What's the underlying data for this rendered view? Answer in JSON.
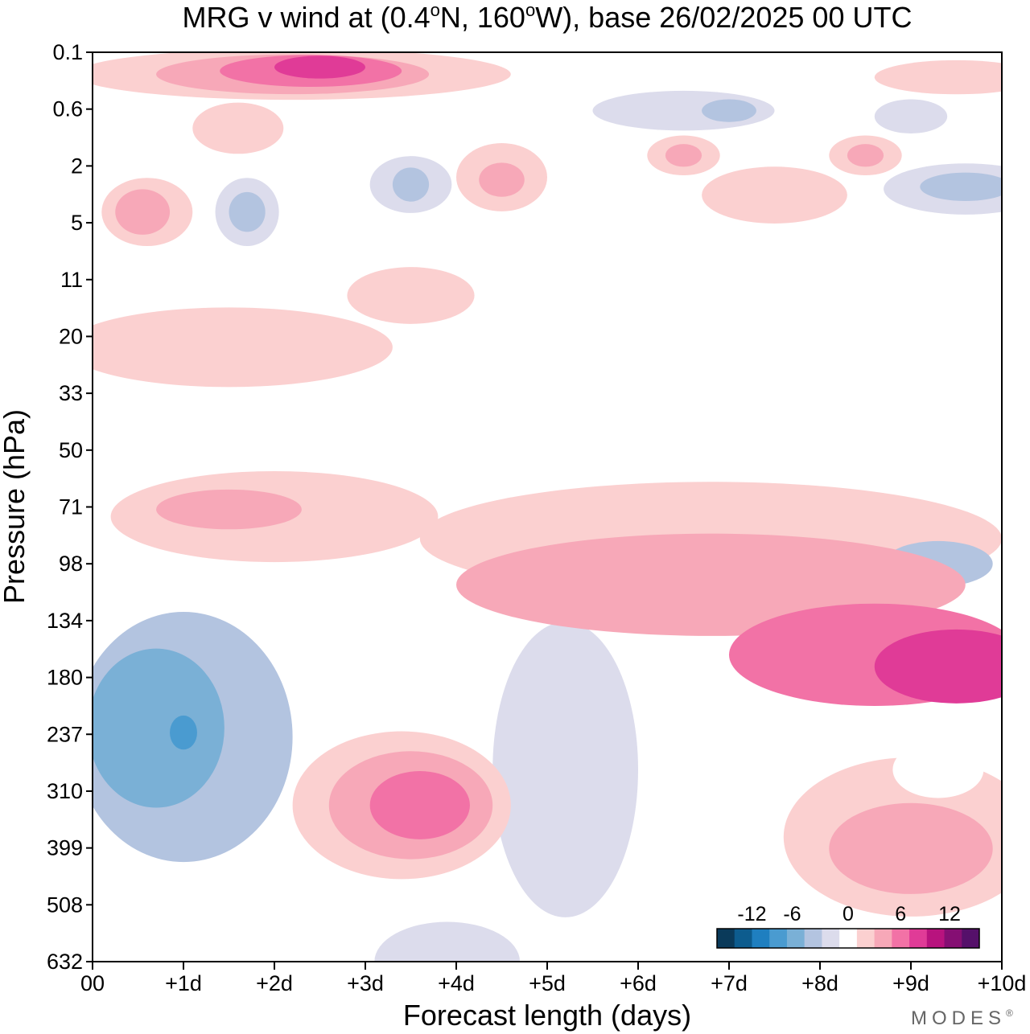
{
  "chart_data": {
    "type": "heatmap",
    "title": "MRG v wind at (0.4°N, 160°W),  base 26/02/2025  00 UTC",
    "title_parts": {
      "prefix": "MRG v wind at (0.4",
      "deg1": "o",
      "mid": "N, 160",
      "deg2": "o",
      "suffix": "W),  base 26/02/2025  00 UTC"
    },
    "xlabel": "Forecast length (days)",
    "ylabel": "Pressure (hPa)",
    "x_ticks": [
      "00",
      "+1d",
      "+2d",
      "+3d",
      "+4d",
      "+5d",
      "+6d",
      "+7d",
      "+8d",
      "+9d",
      "+10d"
    ],
    "y_ticks": [
      "0.1",
      "0.6",
      "2",
      "5",
      "11",
      "20",
      "33",
      "50",
      "71",
      "98",
      "134",
      "180",
      "237",
      "310",
      "399",
      "508",
      "632"
    ],
    "xlim": [
      0,
      10
    ],
    "colorbar": {
      "ticks": [
        "-12",
        "-6",
        "0",
        "6",
        "12"
      ],
      "levels": [
        -15,
        -12.5,
        -10,
        -7.5,
        -5,
        -2.5,
        2.5,
        5,
        7.5,
        10,
        12.5,
        15
      ],
      "colors": [
        "#0a3a5a",
        "#0d5c8e",
        "#1f7fc0",
        "#4a9bd0",
        "#7ab0d6",
        "#b3c4e0",
        "#dcdcec",
        "#ffffff",
        "#fbd0d0",
        "#f7a8b8",
        "#f272a6",
        "#e03b97",
        "#b8137e",
        "#850f73",
        "#55106a"
      ]
    },
    "regions": [
      {
        "level": -2,
        "day": 1.0,
        "p": 240,
        "dx": 1.2,
        "dy": 2.2
      },
      {
        "level": -3,
        "day": 0.7,
        "p": 230,
        "dx": 0.75,
        "dy": 1.4
      },
      {
        "level": -4,
        "day": 1.0,
        "p": 235,
        "dx": 0.15,
        "dy": 0.3
      },
      {
        "level": -1,
        "day": 3.9,
        "p": 720,
        "dx": 0.8,
        "dy": 0.7
      },
      {
        "level": -1,
        "day": 5.2,
        "p": 280,
        "dx": 0.8,
        "dy": 2.6
      },
      {
        "level": -1,
        "day": 8.8,
        "p": 95,
        "dx": 1.0,
        "dy": 0.7
      },
      {
        "level": -2,
        "day": 9.3,
        "p": 98,
        "dx": 0.6,
        "dy": 0.4
      },
      {
        "level": -1,
        "day": 1.7,
        "p": 4.2,
        "dx": 0.35,
        "dy": 0.6
      },
      {
        "level": -2,
        "day": 1.7,
        "p": 4.2,
        "dx": 0.2,
        "dy": 0.35
      },
      {
        "level": -1,
        "day": 3.5,
        "p": 2.7,
        "dx": 0.45,
        "dy": 0.5
      },
      {
        "level": -2,
        "day": 3.5,
        "p": 2.7,
        "dx": 0.2,
        "dy": 0.3
      },
      {
        "level": -1,
        "day": 6.5,
        "p": 0.62,
        "dx": 1.0,
        "dy": 0.35
      },
      {
        "level": -2,
        "day": 7.0,
        "p": 0.62,
        "dx": 0.3,
        "dy": 0.2
      },
      {
        "level": -1,
        "day": 9.6,
        "p": 2.9,
        "dx": 0.9,
        "dy": 0.45
      },
      {
        "level": -2,
        "day": 9.6,
        "p": 2.8,
        "dx": 0.5,
        "dy": 0.25
      },
      {
        "level": -1,
        "day": 9.0,
        "p": 0.7,
        "dx": 0.4,
        "dy": 0.3
      },
      {
        "level": 1,
        "day": 6.8,
        "p": 85,
        "dx": 3.2,
        "dy": 1.0
      },
      {
        "level": 2,
        "day": 6.8,
        "p": 110,
        "dx": 2.8,
        "dy": 0.9
      },
      {
        "level": 3,
        "day": 8.6,
        "p": 160,
        "dx": 1.6,
        "dy": 0.9
      },
      {
        "level": 4,
        "day": 9.5,
        "p": 170,
        "dx": 0.9,
        "dy": 0.65
      },
      {
        "level": 1,
        "day": 3.4,
        "p": 330,
        "dx": 1.2,
        "dy": 1.3
      },
      {
        "level": 2,
        "day": 3.5,
        "p": 330,
        "dx": 0.9,
        "dy": 0.95
      },
      {
        "level": 3,
        "day": 3.6,
        "p": 330,
        "dx": 0.55,
        "dy": 0.6
      },
      {
        "level": 1,
        "day": 9.0,
        "p": 380,
        "dx": 1.4,
        "dy": 1.4
      },
      {
        "level": 2,
        "day": 9.0,
        "p": 400,
        "dx": 0.9,
        "dy": 0.8
      },
      {
        "level": 1,
        "day": 2.2,
        "p": 0.2,
        "dx": 2.4,
        "dy": 0.45
      },
      {
        "level": 2,
        "day": 2.2,
        "p": 0.2,
        "dx": 1.5,
        "dy": 0.35
      },
      {
        "level": 3,
        "day": 2.4,
        "p": 0.18,
        "dx": 1.0,
        "dy": 0.28
      },
      {
        "level": 4,
        "day": 2.5,
        "p": 0.16,
        "dx": 0.5,
        "dy": 0.2
      },
      {
        "level": 1,
        "day": 0.6,
        "p": 4.2,
        "dx": 0.5,
        "dy": 0.6
      },
      {
        "level": 2,
        "day": 0.55,
        "p": 4.2,
        "dx": 0.3,
        "dy": 0.4
      },
      {
        "level": 1,
        "day": 1.6,
        "p": 0.9,
        "dx": 0.5,
        "dy": 0.45
      },
      {
        "level": 1,
        "day": 4.5,
        "p": 2.4,
        "dx": 0.5,
        "dy": 0.6
      },
      {
        "level": 2,
        "day": 4.5,
        "p": 2.5,
        "dx": 0.25,
        "dy": 0.3
      },
      {
        "level": 1,
        "day": 6.5,
        "p": 1.6,
        "dx": 0.4,
        "dy": 0.35
      },
      {
        "level": 2,
        "day": 6.5,
        "p": 1.6,
        "dx": 0.2,
        "dy": 0.2
      },
      {
        "level": 1,
        "day": 8.5,
        "p": 1.6,
        "dx": 0.4,
        "dy": 0.35
      },
      {
        "level": 2,
        "day": 8.5,
        "p": 1.6,
        "dx": 0.2,
        "dy": 0.2
      },
      {
        "level": 1,
        "day": 9.5,
        "p": 0.22,
        "dx": 0.9,
        "dy": 0.3
      },
      {
        "level": 1,
        "day": 1.5,
        "p": 22,
        "dx": 1.8,
        "dy": 0.7
      },
      {
        "level": 1,
        "day": 2.0,
        "p": 75,
        "dx": 1.8,
        "dy": 0.8
      },
      {
        "level": 2,
        "day": 1.5,
        "p": 72,
        "dx": 0.8,
        "dy": 0.35
      },
      {
        "level": 1,
        "day": 3.5,
        "p": 13,
        "dx": 0.7,
        "dy": 0.5
      },
      {
        "level": 1,
        "day": 7.5,
        "p": 3.2,
        "dx": 0.8,
        "dy": 0.5
      }
    ],
    "white_hole": {
      "day": 9.3,
      "p": 280,
      "dx": 0.5,
      "dy": 0.5
    }
  },
  "branding": {
    "watermark": "MODES",
    "registered": "®"
  }
}
